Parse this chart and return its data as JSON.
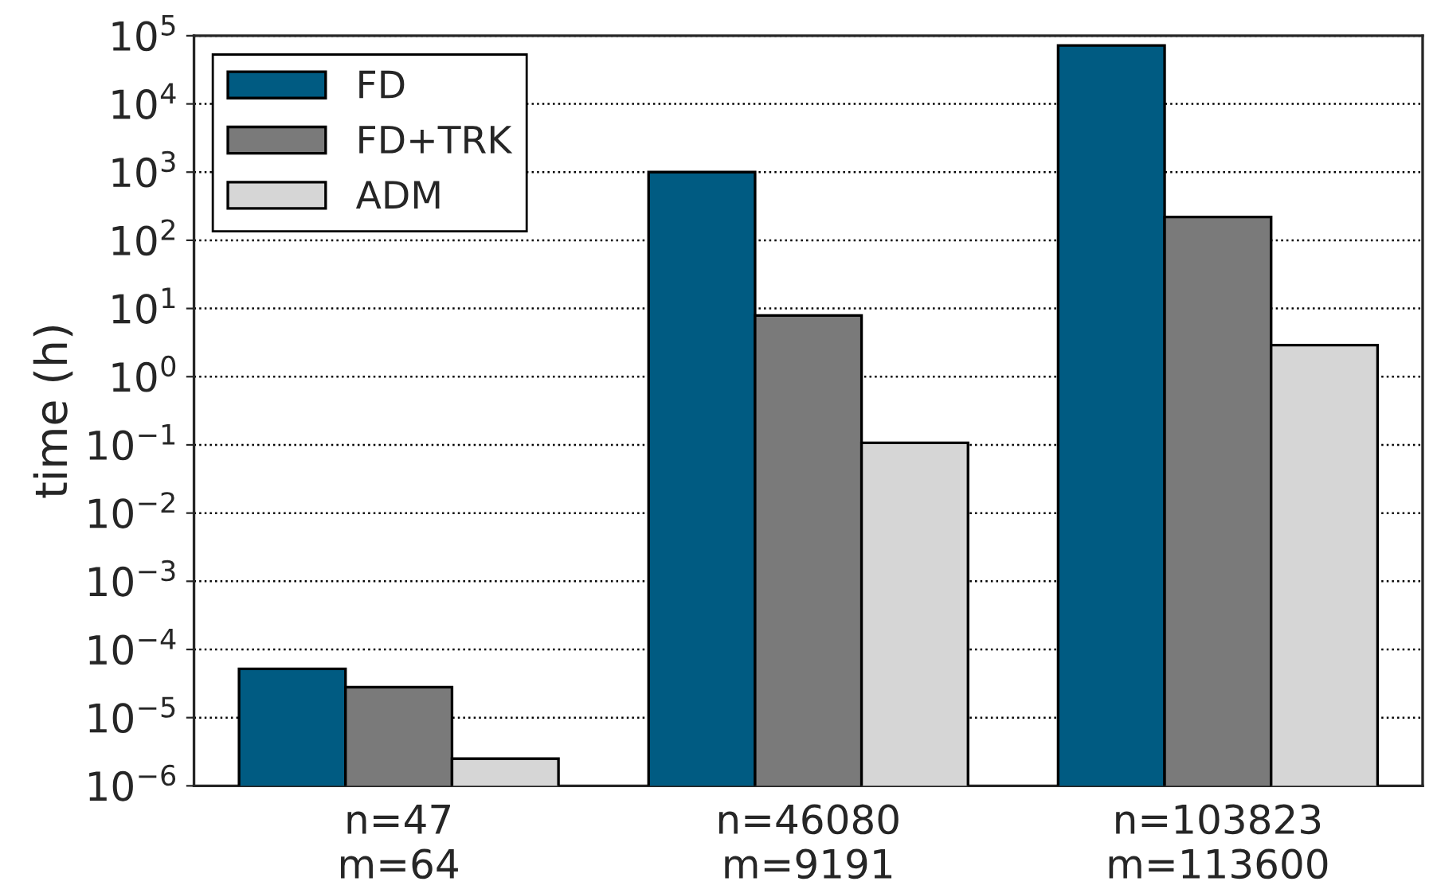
{
  "chart_data": {
    "type": "bar",
    "ylabel": "time (h)",
    "log": true,
    "categories": [
      "n=47\nm=64",
      "n=46080\nm=9191",
      "n=103823\nm=113600"
    ],
    "series": [
      {
        "name": "FD",
        "color": "#005b82",
        "values": [
          5.2e-05,
          1000,
          72000
        ]
      },
      {
        "name": "FD+TRK",
        "color": "#7a7a7a",
        "values": [
          2.8e-05,
          7.9,
          220
        ]
      },
      {
        "name": "ADM",
        "color": "#d6d6d6",
        "values": [
          2.5e-06,
          0.107,
          2.9
        ]
      }
    ],
    "ylim": [
      1e-06,
      100000.0
    ],
    "yticks": [
      {
        "value": 1e-06,
        "label": "10$^{−6}$"
      },
      {
        "value": 1e-05,
        "label": "10$^{−5}$"
      },
      {
        "value": 0.0001,
        "label": "10$^{−4}$"
      },
      {
        "value": 0.001,
        "label": "10$^{−3}$"
      },
      {
        "value": 0.01,
        "label": "10$^{−2}$"
      },
      {
        "value": 0.1,
        "label": "10$^{−1}$"
      },
      {
        "value": 1,
        "label": "10$^{0}$"
      },
      {
        "value": 10,
        "label": "10$^{1}$"
      },
      {
        "value": 100,
        "label": "10$^{2}$"
      },
      {
        "value": 1000,
        "label": "10$^{3}$"
      },
      {
        "value": 10000,
        "label": "10$^{4}$"
      },
      {
        "value": 100000,
        "label": "10$^{5}$"
      }
    ],
    "grid": "y",
    "line_style": "dotted",
    "legend": "top left"
  }
}
